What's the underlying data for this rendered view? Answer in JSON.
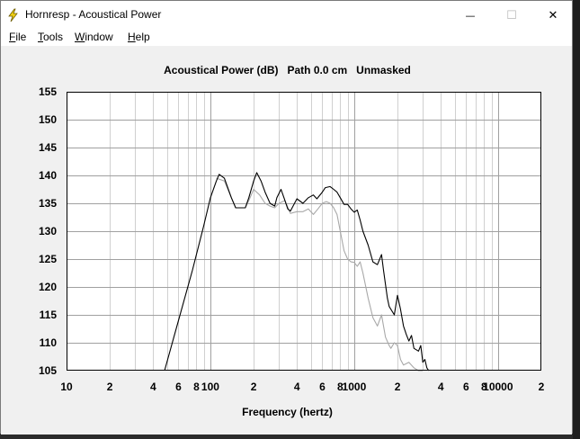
{
  "window": {
    "title": "Hornresp - Acoustical Power",
    "minimize": "—",
    "maximize": "☐",
    "close": "✕"
  },
  "menu": {
    "file": {
      "accel": "F",
      "rest": "ile"
    },
    "tools": {
      "accel": "T",
      "rest": "ools"
    },
    "window": {
      "accel": "W",
      "rest": "indow"
    },
    "help": {
      "accel": "H",
      "rest": "elp"
    }
  },
  "colors": {
    "plot_background": "#ffffff",
    "grid_major": "#a0a0a0",
    "grid_minor": "#d0d0d0",
    "series_main": "#000000",
    "series_secondary": "#a8a8a8"
  },
  "chart_data": {
    "type": "line",
    "title": "Acoustical Power (dB)   Path 0.0 cm   Unmasked",
    "xlabel": "Frequency (hertz)",
    "ylabel": "",
    "x_scale": "log",
    "xlim": [
      10,
      20000
    ],
    "ylim": [
      105,
      155
    ],
    "grid": true,
    "y_ticks": [
      "155",
      "150",
      "145",
      "140",
      "135",
      "130",
      "125",
      "120",
      "115",
      "110",
      "105"
    ],
    "x_tick_labels": [
      {
        "x": 10,
        "label": "10"
      },
      {
        "x": 20,
        "label": "2"
      },
      {
        "x": 40,
        "label": "4"
      },
      {
        "x": 60,
        "label": "6"
      },
      {
        "x": 80,
        "label": "8"
      },
      {
        "x": 100,
        "label": "100"
      },
      {
        "x": 200,
        "label": "2"
      },
      {
        "x": 400,
        "label": "4"
      },
      {
        "x": 600,
        "label": "6"
      },
      {
        "x": 800,
        "label": "8"
      },
      {
        "x": 1000,
        "label": "1000"
      },
      {
        "x": 2000,
        "label": "2"
      },
      {
        "x": 4000,
        "label": "4"
      },
      {
        "x": 6000,
        "label": "6"
      },
      {
        "x": 8000,
        "label": "8"
      },
      {
        "x": 10000,
        "label": "10000"
      },
      {
        "x": 20000,
        "label": "2"
      }
    ],
    "series": [
      {
        "color": "#000000",
        "x": [
          48,
          60,
          75,
          90,
          100,
          110,
          115,
          125,
          140,
          150,
          175,
          185,
          200,
          210,
          225,
          240,
          260,
          280,
          290,
          310,
          325,
          345,
          360,
          400,
          440,
          480,
          520,
          550,
          600,
          630,
          680,
          720,
          760,
          800,
          850,
          900,
          950,
          1000,
          1050,
          1100,
          1150,
          1250,
          1350,
          1450,
          1550,
          1600,
          1700,
          1750,
          1800,
          1900,
          2000,
          2100,
          2200,
          2300,
          2400,
          2500,
          2600,
          2800,
          2900,
          3000,
          3100,
          3200,
          3300
        ],
        "y": [
          105,
          114,
          123,
          131,
          136,
          139,
          140.2,
          139.5,
          136,
          134.2,
          134.2,
          136,
          139,
          140.5,
          139,
          137,
          135,
          134.5,
          136,
          137.5,
          136,
          134,
          133.6,
          135.8,
          135,
          136,
          136.5,
          135.8,
          137,
          137.8,
          138,
          137.5,
          137,
          136,
          134.8,
          134.8,
          134,
          133.4,
          133.8,
          132,
          130,
          127.5,
          124.5,
          124,
          125.8,
          123,
          118,
          116.5,
          116,
          115,
          118.5,
          116,
          113,
          111.5,
          110.3,
          111.3,
          109,
          108.5,
          109.5,
          106.5,
          107,
          105.5,
          105
        ]
      },
      {
        "color": "#a8a8a8",
        "x": [
          110,
          125,
          140,
          150,
          175,
          185,
          200,
          220,
          240,
          260,
          280,
          300,
          330,
          360,
          400,
          440,
          480,
          520,
          560,
          600,
          640,
          680,
          720,
          760,
          800,
          850,
          900,
          950,
          1000,
          1050,
          1100,
          1150,
          1250,
          1350,
          1450,
          1550,
          1650,
          1750,
          1800,
          1900,
          2000,
          2100,
          2200,
          2400,
          2600,
          2800,
          3000
        ],
        "y": [
          139.5,
          139,
          136,
          134.2,
          134.2,
          135.5,
          137.5,
          136.5,
          135,
          134.5,
          134.2,
          135,
          135.5,
          133.2,
          133.5,
          133.5,
          134,
          133,
          134,
          135,
          135.3,
          135,
          134.2,
          133,
          130,
          126.5,
          125,
          124.5,
          124.4,
          123.7,
          124.5,
          122.5,
          118,
          114.5,
          113,
          115,
          111,
          109.5,
          109,
          110,
          109.5,
          107,
          106,
          106.5,
          105.5,
          105,
          105
        ]
      }
    ]
  }
}
